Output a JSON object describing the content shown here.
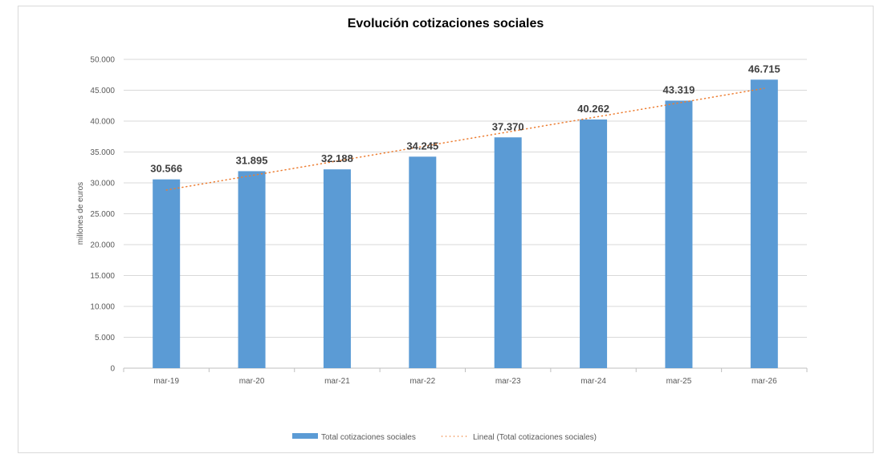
{
  "chart_data": {
    "type": "bar",
    "title": "Evolución cotizaciones sociales",
    "xlabel": "",
    "ylabel": "millones de euros",
    "categories": [
      "mar-19",
      "mar-20",
      "mar-21",
      "mar-22",
      "mar-23",
      "mar-24",
      "mar-25",
      "mar-26"
    ],
    "series": [
      {
        "name": "Total cotizaciones sociales",
        "values": [
          30566,
          31895,
          32188,
          34245,
          37370,
          40262,
          43319,
          46715
        ],
        "labels": [
          "30.566",
          "31.895",
          "32.188",
          "34.245",
          "37.370",
          "40.262",
          "43.319",
          "46.715"
        ],
        "color": "#5B9BD5"
      }
    ],
    "trendline": {
      "name": "Lineal (Total cotizaciones sociales)",
      "type": "linear",
      "color": "#ED7D31",
      "style": "dotted"
    },
    "ylim": [
      0,
      50000
    ],
    "yticks": [
      0,
      5000,
      10000,
      15000,
      20000,
      25000,
      30000,
      35000,
      40000,
      45000,
      50000
    ],
    "ytick_labels": [
      "0",
      "5.000",
      "10.000",
      "15.000",
      "20.000",
      "25.000",
      "30.000",
      "35.000",
      "40.000",
      "45.000",
      "50.000"
    ],
    "grid": true,
    "legend_position": "bottom"
  }
}
